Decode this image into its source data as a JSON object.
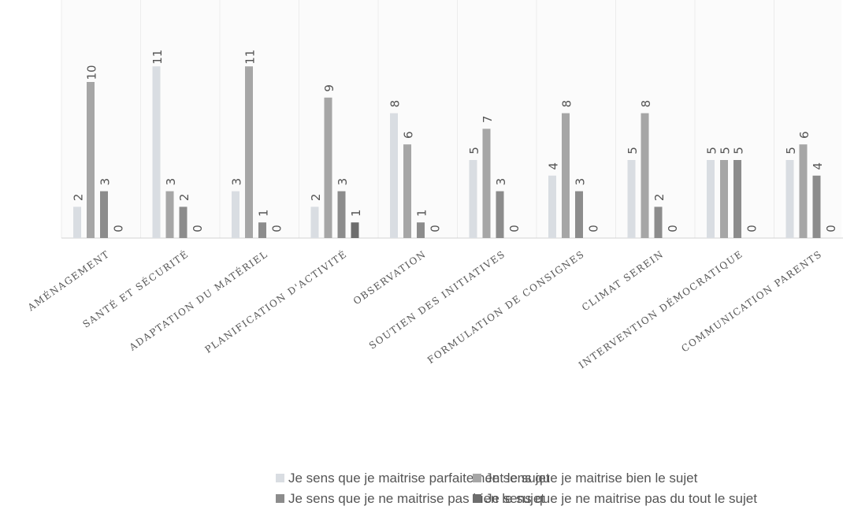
{
  "chart_data": {
    "type": "bar",
    "title": "",
    "xlabel": "",
    "ylabel": "",
    "categories": [
      "AMÉNAGEMENT",
      "SANTÉ ET SÉCURITÉ",
      "ADAPTATION DU MATÉRIEL",
      "PLANIFICATION D'ACTIVITÉ",
      "OBSERVATION",
      "SOUTIEN DES INITIATIVES",
      "FORMULATION DE CONSIGNES",
      "CLIMAT SEREIN",
      "INTERVENTION DÉMOCRATIQUE",
      "COMMUNICATION PARENTS"
    ],
    "series": [
      {
        "name": "Je sens que je maitrise parfaitement le sujet",
        "color": "#d9dde2",
        "values": [
          2,
          11,
          3,
          2,
          8,
          5,
          4,
          5,
          5,
          5
        ]
      },
      {
        "name": "Je sens que je maitrise bien le sujet",
        "color": "#a6a6a6",
        "values": [
          10,
          3,
          11,
          9,
          6,
          7,
          8,
          8,
          5,
          6
        ]
      },
      {
        "name": "Je sens que je ne maitrise pas bien le sujet",
        "color": "#8c8c8c",
        "values": [
          3,
          2,
          1,
          3,
          1,
          3,
          3,
          2,
          5,
          4
        ]
      },
      {
        "name": "Je sens que je ne maitrise pas du tout le sujet",
        "color": "#6d6d6d",
        "values": [
          0,
          0,
          0,
          1,
          0,
          0,
          0,
          0,
          0,
          0
        ]
      }
    ],
    "ylim": [
      0,
      11
    ],
    "grid": false,
    "data_labels": true,
    "legend_position": "bottom"
  }
}
